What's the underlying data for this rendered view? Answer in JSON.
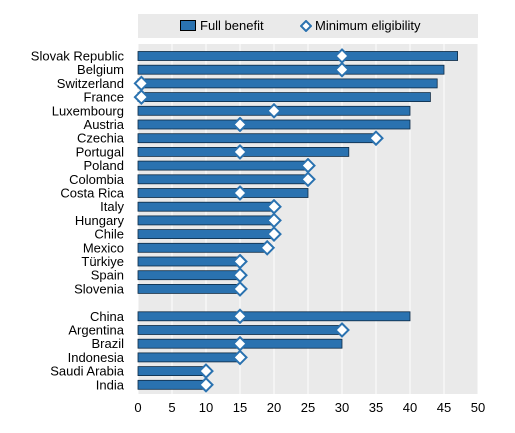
{
  "colors": {
    "bar": "#2a72b0",
    "bar_stroke": "#0d2a44",
    "plot_bg": "#eaeaea",
    "grid": "#ffffff",
    "marker_fill": "#ffffff",
    "marker_stroke": "#2a72b0"
  },
  "legend": {
    "full_benefit": "Full benefit",
    "minimum_eligibility": "Minimum eligibility"
  },
  "chart_data": {
    "type": "bar",
    "orientation": "horizontal",
    "legend_placement": "top",
    "grid": true,
    "xlim": [
      0,
      50
    ],
    "xticks": [
      0,
      5,
      10,
      15,
      20,
      25,
      30,
      35,
      40,
      45,
      50
    ],
    "groups": [
      {
        "categories": [
          "Slovak Republic",
          "Belgium",
          "Switzerland",
          "France",
          "Luxembourg",
          "Austria",
          "Czechia",
          "Portugal",
          "Poland",
          "Colombia",
          "Costa Rica",
          "Italy",
          "Hungary",
          "Chile",
          "Mexico",
          "Türkiye",
          "Spain",
          "Slovenia"
        ],
        "full_benefit": [
          47,
          45,
          44,
          43,
          40,
          40,
          35,
          31,
          25,
          25,
          25,
          20,
          20,
          20,
          19,
          15,
          15,
          15
        ],
        "minimum_eligibility": [
          30,
          30,
          0.5,
          0.5,
          20,
          15,
          35,
          15,
          25,
          25,
          15,
          20,
          20,
          20,
          19,
          15,
          15,
          15
        ]
      },
      {
        "categories": [
          "China",
          "Argentina",
          "Brazil",
          "Indonesia",
          "Saudi Arabia",
          "India"
        ],
        "full_benefit": [
          40,
          30,
          30,
          15,
          10,
          10
        ],
        "minimum_eligibility": [
          15,
          30,
          15,
          15,
          10,
          10
        ]
      }
    ],
    "series": [
      {
        "name": "Full benefit",
        "key": "full_benefit"
      },
      {
        "name": "Minimum eligibility",
        "key": "minimum_eligibility"
      }
    ]
  }
}
